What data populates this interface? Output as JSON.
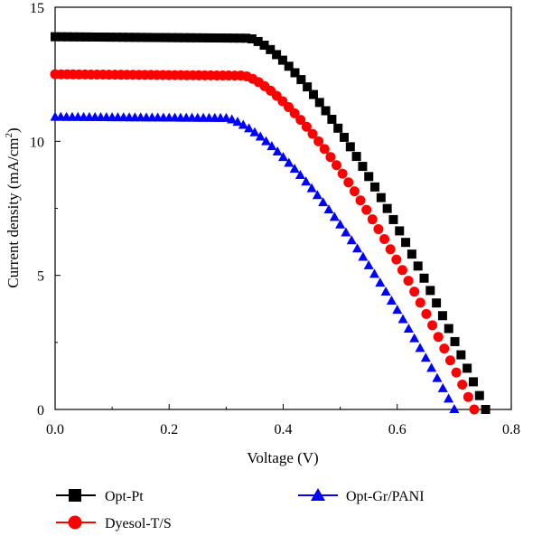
{
  "chart_data": {
    "type": "scatter",
    "title": "",
    "xlabel": "Voltage (V)",
    "ylabel": "Current density (mA/cm",
    "ylabel_sup": "2",
    "ylabel_close": ")",
    "xlim": [
      0.0,
      0.8
    ],
    "ylim": [
      0,
      15
    ],
    "x_ticks": [
      "0.0",
      "0.2",
      "0.4",
      "0.6",
      "0.8"
    ],
    "y_ticks": [
      "0",
      "5",
      "10",
      "15"
    ],
    "grid": false,
    "legend_position": "bottom",
    "series": [
      {
        "name": "Opt-Pt",
        "color": "#000000",
        "marker": "square",
        "params": {
          "jsc": 13.9,
          "voc": 0.755,
          "knee": 0.34,
          "x_end": 0.755
        },
        "key_points": [
          [
            0.0,
            13.9
          ],
          [
            0.3,
            13.85
          ],
          [
            0.4,
            13.3
          ],
          [
            0.5,
            10.8
          ],
          [
            0.6,
            6.5
          ],
          [
            0.7,
            2.3
          ],
          [
            0.755,
            0.0
          ]
        ]
      },
      {
        "name": "Dyesol-T/S",
        "color": "#ff0000",
        "marker": "circle",
        "params": {
          "jsc": 12.5,
          "voc": 0.735,
          "knee": 0.33,
          "x_end": 0.735
        },
        "key_points": [
          [
            0.0,
            12.5
          ],
          [
            0.3,
            12.45
          ],
          [
            0.4,
            11.8
          ],
          [
            0.5,
            9.2
          ],
          [
            0.6,
            5.2
          ],
          [
            0.7,
            1.3
          ],
          [
            0.735,
            0.0
          ]
        ]
      },
      {
        "name": "Opt-Gr/PANI",
        "color": "#0000ff",
        "marker": "triangle",
        "params": {
          "jsc": 10.9,
          "voc": 0.7,
          "knee": 0.3,
          "x_end": 0.7
        },
        "key_points": [
          [
            0.0,
            10.9
          ],
          [
            0.3,
            10.8
          ],
          [
            0.4,
            9.7
          ],
          [
            0.5,
            6.8
          ],
          [
            0.6,
            3.4
          ],
          [
            0.7,
            0.0
          ]
        ]
      }
    ]
  }
}
